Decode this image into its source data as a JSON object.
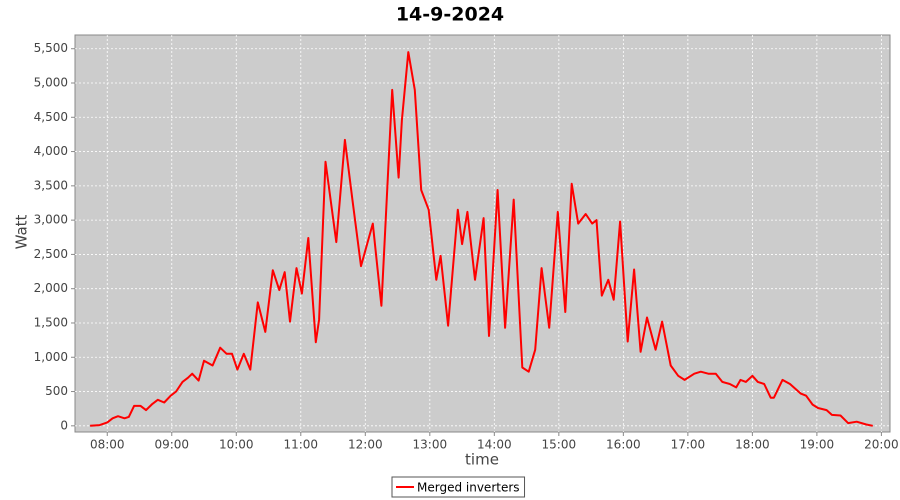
{
  "chart_data": {
    "type": "line",
    "title": "14-9-2024",
    "x_label": "time",
    "y_label": "Watt",
    "x": [
      "07:44",
      "07:53",
      "08:00",
      "08:05",
      "08:10",
      "08:16",
      "08:20",
      "08:25",
      "08:31",
      "08:36",
      "08:42",
      "08:47",
      "08:53",
      "08:59",
      "09:04",
      "09:10",
      "09:15",
      "09:19",
      "09:25",
      "09:30",
      "09:38",
      "09:45",
      "09:51",
      "09:56",
      "10:01",
      "10:07",
      "10:13",
      "10:20",
      "10:27",
      "10:34",
      "10:40",
      "10:45",
      "10:50",
      "10:56",
      "11:01",
      "11:07",
      "11:14",
      "11:17",
      "11:23",
      "11:33",
      "11:41",
      "11:48",
      "11:56",
      "12:07",
      "12:15",
      "12:19",
      "12:25",
      "12:31",
      "12:34",
      "12:40",
      "12:46",
      "12:52",
      "12:59",
      "13:06",
      "13:10",
      "13:17",
      "13:26",
      "13:30",
      "13:35",
      "13:42",
      "13:50",
      "13:55",
      "14:03",
      "14:10",
      "14:18",
      "14:26",
      "14:32",
      "14:38",
      "14:44",
      "14:51",
      "14:59",
      "15:06",
      "15:12",
      "15:18",
      "15:25",
      "15:31",
      "15:35",
      "15:40",
      "15:46",
      "15:51",
      "15:57",
      "16:04",
      "16:10",
      "16:16",
      "16:22",
      "16:30",
      "16:36",
      "16:44",
      "16:51",
      "16:57",
      "17:06",
      "17:12",
      "17:19",
      "17:26",
      "17:32",
      "17:39",
      "17:45",
      "17:49",
      "17:54",
      "18:00",
      "18:05",
      "18:11",
      "18:17",
      "18:20",
      "18:28",
      "18:35",
      "18:45",
      "18:50",
      "18:56",
      "19:01",
      "19:09",
      "19:14",
      "19:22",
      "19:29",
      "19:37",
      "19:46",
      "19:52"
    ],
    "series": [
      {
        "name": "Merged inverters",
        "color": "#ff0000",
        "values": [
          0,
          10,
          50,
          110,
          140,
          110,
          130,
          290,
          290,
          230,
          320,
          380,
          340,
          440,
          500,
          640,
          700,
          760,
          660,
          950,
          880,
          1140,
          1050,
          1050,
          820,
          1050,
          820,
          1800,
          1370,
          2270,
          1980,
          2240,
          1520,
          2300,
          1930,
          2740,
          1220,
          1550,
          3850,
          2680,
          4170,
          3300,
          2330,
          2950,
          1750,
          3000,
          4900,
          3620,
          4460,
          5450,
          4900,
          3440,
          3150,
          2130,
          2480,
          1460,
          3150,
          2650,
          3120,
          2130,
          3030,
          1310,
          3440,
          1430,
          3300,
          850,
          790,
          1110,
          2300,
          1430,
          3120,
          1660,
          3530,
          2950,
          3090,
          2950,
          3000,
          1900,
          2130,
          1840,
          2980,
          1230,
          2280,
          1080,
          1580,
          1110,
          1520,
          880,
          730,
          670,
          760,
          790,
          760,
          760,
          640,
          610,
          560,
          670,
          640,
          730,
          640,
          610,
          410,
          410,
          670,
          610,
          470,
          440,
          310,
          260,
          230,
          160,
          150,
          40,
          60,
          20,
          0
        ]
      }
    ],
    "xlim": [
      "07:30",
      "20:08"
    ],
    "xticks": [
      "08:00",
      "09:00",
      "10:00",
      "11:00",
      "12:00",
      "13:00",
      "14:00",
      "15:00",
      "16:00",
      "17:00",
      "18:00",
      "19:00",
      "20:00"
    ],
    "ylim": [
      -90,
      5700
    ],
    "yticks": [
      0,
      500,
      {
        "value": 1000,
        "label": "1,000"
      },
      {
        "value": 1500,
        "label": "1,500"
      },
      {
        "value": 2000,
        "label": "2,000"
      },
      {
        "value": 2500,
        "label": "2,500"
      },
      {
        "value": 3000,
        "label": "3,000"
      },
      {
        "value": 3500,
        "label": "3,500"
      },
      {
        "value": 4000,
        "label": "4,000"
      },
      {
        "value": 4500,
        "label": "4,500"
      },
      {
        "value": 5000,
        "label": "5,000"
      },
      {
        "value": 5500,
        "label": "5,500"
      }
    ],
    "grid": true,
    "legend": "bottom",
    "background": "#cccccc"
  }
}
